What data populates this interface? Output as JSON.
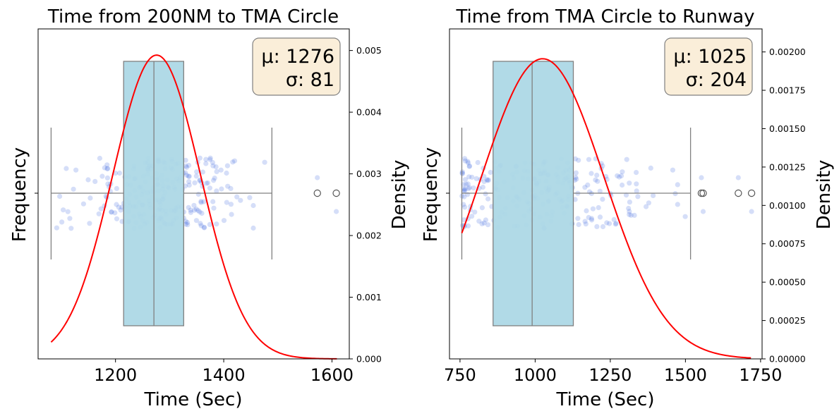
{
  "chart_data": [
    {
      "type": "box-strip-density",
      "title": "Time from 200NM to TMA Circle",
      "xlabel": "Time (Sec)",
      "ylabel": "Frequency",
      "y2label": "Density",
      "xlim": [
        1057,
        1632
      ],
      "xticks": [
        1200,
        1400,
        1600
      ],
      "y2lim": [
        0,
        0.00535
      ],
      "y2ticks": [
        "0.000",
        "0.001",
        "0.002",
        "0.003",
        "0.004",
        "0.005"
      ],
      "box": {
        "whisker_low": 1081,
        "q1": 1215,
        "median": 1271,
        "q3": 1326,
        "whisker_high": 1489,
        "outliers": [
          1573,
          1608
        ]
      },
      "fit": {
        "mu": 1276,
        "sigma": 81,
        "x_start": 1081,
        "x_end": 1609
      },
      "stats_text": {
        "mu": "μ: 1276",
        "sigma": "σ: 81"
      },
      "colors": {
        "box": "#add8e6",
        "box_edge": "#808080",
        "points": "#4169e1",
        "curve": "#ff0000",
        "stats_bg": "#f5deb3"
      },
      "n_points": 250
    },
    {
      "type": "box-strip-density",
      "title": "Time from TMA Circle to Runway",
      "xlabel": "Time (Sec)",
      "ylabel": "Frequency",
      "y2label": "Density",
      "xlim": [
        715,
        1755
      ],
      "xticks": [
        750,
        1000,
        1250,
        1500,
        1750
      ],
      "y2lim": [
        0,
        0.00215
      ],
      "y2ticks": [
        "0.00000",
        "0.00025",
        "0.00050",
        "0.00075",
        "0.00100",
        "0.00125",
        "0.00150",
        "0.00175",
        "0.00200"
      ],
      "box": {
        "whisker_low": 756,
        "q1": 860,
        "median": 990,
        "q3": 1127,
        "whisker_high": 1517,
        "outliers": [
          1553,
          1559,
          1676,
          1720
        ]
      },
      "fit": {
        "mu": 1025,
        "sigma": 204,
        "x_start": 756,
        "x_end": 1718
      },
      "stats_text": {
        "mu": "μ: 1025",
        "sigma": "σ: 204"
      },
      "colors": {
        "box": "#add8e6",
        "box_edge": "#808080",
        "points": "#4169e1",
        "curve": "#ff0000",
        "stats_bg": "#f5deb3"
      },
      "n_points": 250
    }
  ]
}
